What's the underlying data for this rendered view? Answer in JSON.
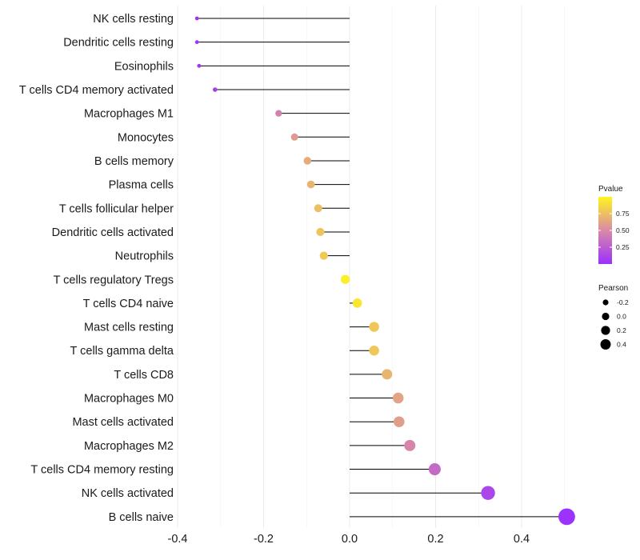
{
  "chart_data": {
    "type": "lollipop",
    "title": "",
    "xlabel": "",
    "ylabel": "",
    "xlim": [
      -0.4,
      0.5
    ],
    "x_ticks": [
      -0.4,
      -0.2,
      0.0,
      0.2,
      0.4
    ],
    "x_tick_labels": [
      "-0.4",
      "-0.2",
      "0.0",
      "0.2",
      "0.4"
    ],
    "grid": "vertical",
    "categories": [
      "NK cells resting",
      "Dendritic cells resting",
      "Eosinophils",
      "T cells CD4 memory activated",
      "Macrophages M1",
      "Monocytes",
      "B cells memory",
      "Plasma cells",
      "T cells follicular helper",
      "Dendritic cells activated",
      "Neutrophils",
      "T cells regulatory  Tregs ",
      "T cells CD4 naive",
      "Mast cells resting",
      "T cells gamma delta",
      "T cells CD8",
      "Macrophages M0",
      "Mast cells activated",
      "Macrophages M2",
      "T cells CD4 memory resting",
      "NK cells activated",
      "B cells naive"
    ],
    "pearson": [
      -0.355,
      -0.355,
      -0.35,
      -0.313,
      -0.165,
      -0.128,
      -0.098,
      -0.09,
      -0.073,
      -0.068,
      -0.06,
      -0.01,
      0.018,
      0.057,
      0.057,
      0.087,
      0.113,
      0.115,
      0.14,
      0.198,
      0.322,
      0.505
    ],
    "pvalue": [
      0.03,
      0.03,
      0.03,
      0.08,
      0.45,
      0.58,
      0.66,
      0.7,
      0.75,
      0.77,
      0.8,
      0.97,
      0.93,
      0.78,
      0.78,
      0.7,
      0.62,
      0.6,
      0.48,
      0.32,
      0.12,
      0.01
    ],
    "legend": {
      "color_title": "Pvalue",
      "color_ticks": [
        0.25,
        0.5,
        0.75
      ],
      "color_tick_labels": [
        "0.25",
        "0.50",
        "0.75"
      ],
      "color_range": [
        0.0,
        1.0
      ],
      "color_low": "#9B30FF",
      "color_high": "#FFF51E",
      "size_title": "Pearson",
      "size_values": [
        -0.2,
        0.0,
        0.2,
        0.4
      ],
      "size_labels": [
        "-0.2",
        "0.0",
        "0.2",
        "0.4"
      ],
      "placement": "right"
    }
  }
}
